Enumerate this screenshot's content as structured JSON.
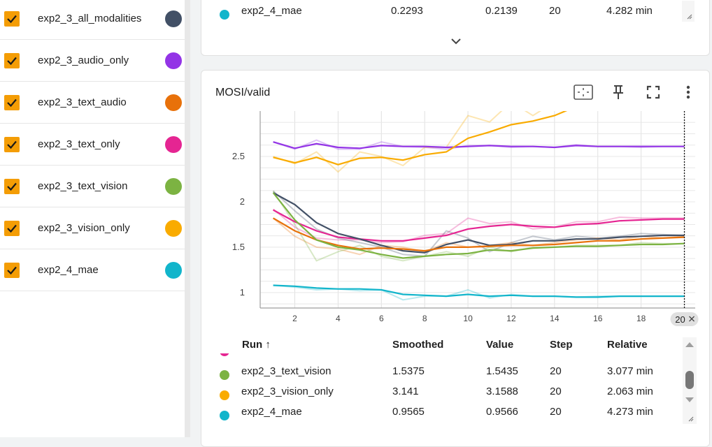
{
  "runs": [
    {
      "label": "exp2_3_all_modalities",
      "color": "#425066"
    },
    {
      "label": "exp2_3_audio_only",
      "color": "#9334e6"
    },
    {
      "label": "exp2_3_text_audio",
      "color": "#e8710a"
    },
    {
      "label": "exp2_3_text_only",
      "color": "#e52592"
    },
    {
      "label": "exp2_3_text_vision",
      "color": "#7cb342"
    },
    {
      "label": "exp2_3_vision_only",
      "color": "#f9ab00"
    },
    {
      "label": "exp2_4_mae",
      "color": "#12b5cb"
    }
  ],
  "top_card": {
    "row": {
      "name": "exp2_4_mae",
      "smoothed": "0.2293",
      "value": "0.2139",
      "step": "20",
      "relative": "4.282 min",
      "color": "#12b5cb"
    },
    "expand_icon": "chevron-down-icon"
  },
  "chart_card": {
    "title": "MOSI/valid",
    "toolbar_icons": [
      "fit-domain-icon",
      "pin-icon",
      "fullscreen-icon",
      "more-vert-icon"
    ],
    "step_badge": "20",
    "table": {
      "headers": {
        "run": "Run ↑",
        "smoothed": "Smoothed",
        "value": "Value",
        "step": "Step",
        "relative": "Relative"
      },
      "rows": [
        {
          "name": "exp2_3_text_vision",
          "smoothed": "1.5375",
          "value": "1.5435",
          "step": "20",
          "relative": "3.077 min",
          "color": "#7cb342"
        },
        {
          "name": "exp2_3_vision_only",
          "smoothed": "3.141",
          "value": "3.1588",
          "step": "20",
          "relative": "2.063 min",
          "color": "#f9ab00"
        },
        {
          "name": "exp2_4_mae",
          "smoothed": "0.9565",
          "value": "0.9566",
          "step": "20",
          "relative": "4.273 min",
          "color": "#12b5cb"
        }
      ]
    }
  },
  "chart_data": {
    "type": "line",
    "title": "MOSI/valid",
    "xlabel": "",
    "ylabel": "",
    "xlim": [
      0.4,
      20.5
    ],
    "ylim": [
      0.83,
      3.0
    ],
    "x_ticks": [
      2,
      4,
      6,
      8,
      10,
      12,
      14,
      16,
      18
    ],
    "y_ticks": [
      1,
      1.5,
      2,
      2.5
    ],
    "y_tick_labels": [
      "1",
      "1.5",
      "2",
      "2.5"
    ],
    "grid": true,
    "x": [
      1,
      2,
      3,
      4,
      5,
      6,
      7,
      8,
      9,
      10,
      11,
      12,
      13,
      14,
      15,
      16,
      17,
      18,
      19,
      20
    ],
    "series": [
      {
        "name": "exp2_3_audio_only",
        "color": "#9334e6",
        "raw": [
          2.66,
          2.58,
          2.68,
          2.58,
          2.58,
          2.66,
          2.61,
          2.6,
          2.58,
          2.62,
          2.62,
          2.6,
          2.61,
          2.6,
          2.63,
          2.61,
          2.61,
          2.6,
          2.61,
          2.61
        ],
        "smoothed": [
          2.66,
          2.59,
          2.64,
          2.6,
          2.59,
          2.62,
          2.61,
          2.61,
          2.6,
          2.61,
          2.62,
          2.61,
          2.61,
          2.6,
          2.62,
          2.61,
          2.61,
          2.61,
          2.61,
          2.61
        ]
      },
      {
        "name": "exp2_3_vision_only",
        "color": "#f9ab00",
        "raw": [
          2.5,
          2.42,
          2.55,
          2.33,
          2.55,
          2.5,
          2.4,
          2.6,
          2.6,
          2.95,
          2.88,
          3.1,
          2.95,
          3.1,
          3.2,
          3.3,
          3.2,
          3.25,
          3.2,
          3.16
        ],
        "smoothed": [
          2.49,
          2.43,
          2.49,
          2.41,
          2.48,
          2.49,
          2.46,
          2.52,
          2.55,
          2.7,
          2.77,
          2.85,
          2.89,
          2.95,
          3.05,
          3.12,
          3.14,
          3.15,
          3.14,
          3.14
        ]
      },
      {
        "name": "exp2_3_text_only",
        "color": "#e52592",
        "raw": [
          1.92,
          1.72,
          1.6,
          1.58,
          1.58,
          1.55,
          1.56,
          1.63,
          1.65,
          1.82,
          1.76,
          1.78,
          1.7,
          1.72,
          1.78,
          1.78,
          1.83,
          1.82,
          1.82,
          1.82
        ],
        "smoothed": [
          1.91,
          1.78,
          1.68,
          1.61,
          1.59,
          1.57,
          1.57,
          1.6,
          1.63,
          1.7,
          1.73,
          1.75,
          1.73,
          1.72,
          1.75,
          1.76,
          1.79,
          1.8,
          1.81,
          1.81
        ]
      },
      {
        "name": "exp2_3_all_modalities",
        "color": "#425066",
        "raw": [
          2.12,
          1.9,
          1.7,
          1.6,
          1.55,
          1.5,
          1.42,
          1.4,
          1.68,
          1.6,
          1.45,
          1.55,
          1.62,
          1.58,
          1.62,
          1.6,
          1.62,
          1.65,
          1.64,
          1.63
        ],
        "smoothed": [
          2.1,
          1.97,
          1.77,
          1.65,
          1.59,
          1.52,
          1.46,
          1.44,
          1.53,
          1.58,
          1.52,
          1.53,
          1.57,
          1.57,
          1.59,
          1.59,
          1.61,
          1.62,
          1.63,
          1.63
        ]
      },
      {
        "name": "exp2_3_text_audio",
        "color": "#e8710a",
        "raw": [
          1.82,
          1.62,
          1.5,
          1.48,
          1.42,
          1.52,
          1.5,
          1.45,
          1.55,
          1.5,
          1.52,
          1.55,
          1.52,
          1.55,
          1.58,
          1.6,
          1.58,
          1.62,
          1.6,
          1.62
        ],
        "smoothed": [
          1.82,
          1.68,
          1.58,
          1.52,
          1.48,
          1.49,
          1.48,
          1.46,
          1.5,
          1.5,
          1.51,
          1.52,
          1.52,
          1.53,
          1.55,
          1.57,
          1.57,
          1.59,
          1.6,
          1.61
        ]
      },
      {
        "name": "exp2_3_text_vision",
        "color": "#7cb342",
        "raw": [
          2.12,
          1.75,
          1.35,
          1.45,
          1.52,
          1.4,
          1.35,
          1.4,
          1.45,
          1.4,
          1.5,
          1.45,
          1.5,
          1.5,
          1.52,
          1.52,
          1.52,
          1.55,
          1.54,
          1.54
        ],
        "smoothed": [
          2.1,
          1.8,
          1.58,
          1.5,
          1.47,
          1.42,
          1.38,
          1.4,
          1.42,
          1.43,
          1.47,
          1.46,
          1.49,
          1.5,
          1.51,
          1.51,
          1.52,
          1.53,
          1.53,
          1.54
        ]
      },
      {
        "name": "exp2_4_mae",
        "color": "#12b5cb",
        "raw": [
          1.08,
          1.06,
          1.03,
          1.04,
          1.02,
          1.03,
          0.92,
          0.96,
          0.96,
          1.03,
          0.94,
          0.98,
          0.96,
          0.96,
          0.95,
          0.96,
          0.96,
          0.96,
          0.96,
          0.96
        ],
        "smoothed": [
          1.08,
          1.07,
          1.05,
          1.04,
          1.04,
          1.03,
          0.98,
          0.97,
          0.96,
          0.98,
          0.96,
          0.97,
          0.96,
          0.96,
          0.95,
          0.95,
          0.96,
          0.96,
          0.96,
          0.96
        ]
      }
    ]
  }
}
